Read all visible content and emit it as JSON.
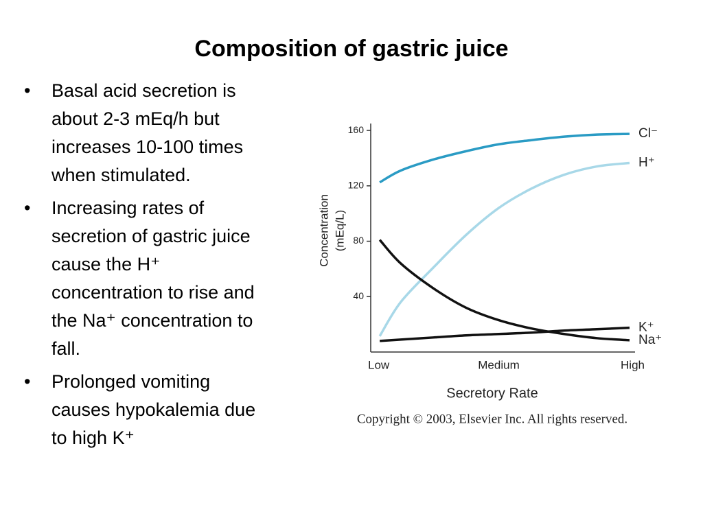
{
  "title": "Composition of gastric juice",
  "bullets": [
    "Basal acid secretion is about 2-3 mEq/h but increases 10-100 times when stimulated.",
    "Increasing rates of secretion of gastric juice cause the H⁺ concentration to rise and the Na⁺ concentration to fall.",
    "Prolonged vomiting causes hypokalemia due to high K⁺"
  ],
  "chart_data": {
    "type": "line",
    "ylabel_lines": [
      "Concentration",
      "(mEq/L)"
    ],
    "xlabel": "Secretory Rate",
    "copyright": "Copyright © 2003, Elsevier Inc. All rights reserved.",
    "x": [
      0.09,
      0.25,
      0.5,
      0.75,
      1,
      1.25,
      1.5,
      1.75,
      2
    ],
    "xlim": [
      0,
      2
    ],
    "xticks": [
      {
        "value": 0,
        "label": "Low"
      },
      {
        "value": 1,
        "label": "Medium"
      },
      {
        "value": 2,
        "label": "High"
      }
    ],
    "ylim": [
      0,
      165
    ],
    "yticks": [
      40,
      80,
      120,
      160
    ],
    "series": [
      {
        "name": "Cl⁻",
        "color": "#2a9bc4",
        "values": [
          122.5,
          131,
          139,
          145,
          150,
          153,
          155.5,
          157,
          157.5
        ]
      },
      {
        "name": "H⁺",
        "color": "#a8d8e8",
        "values": [
          11.5,
          36,
          61,
          84.5,
          104,
          118,
          128,
          134,
          136.5
        ]
      },
      {
        "name": "K⁺",
        "color": "#111111",
        "values": [
          8,
          9,
          10.5,
          12,
          13,
          14,
          15.5,
          16.5,
          17.5
        ]
      },
      {
        "name": "Na⁺",
        "color": "#111111",
        "values": [
          81,
          64,
          46,
          32,
          23,
          17,
          13,
          10,
          8.5
        ]
      }
    ]
  }
}
